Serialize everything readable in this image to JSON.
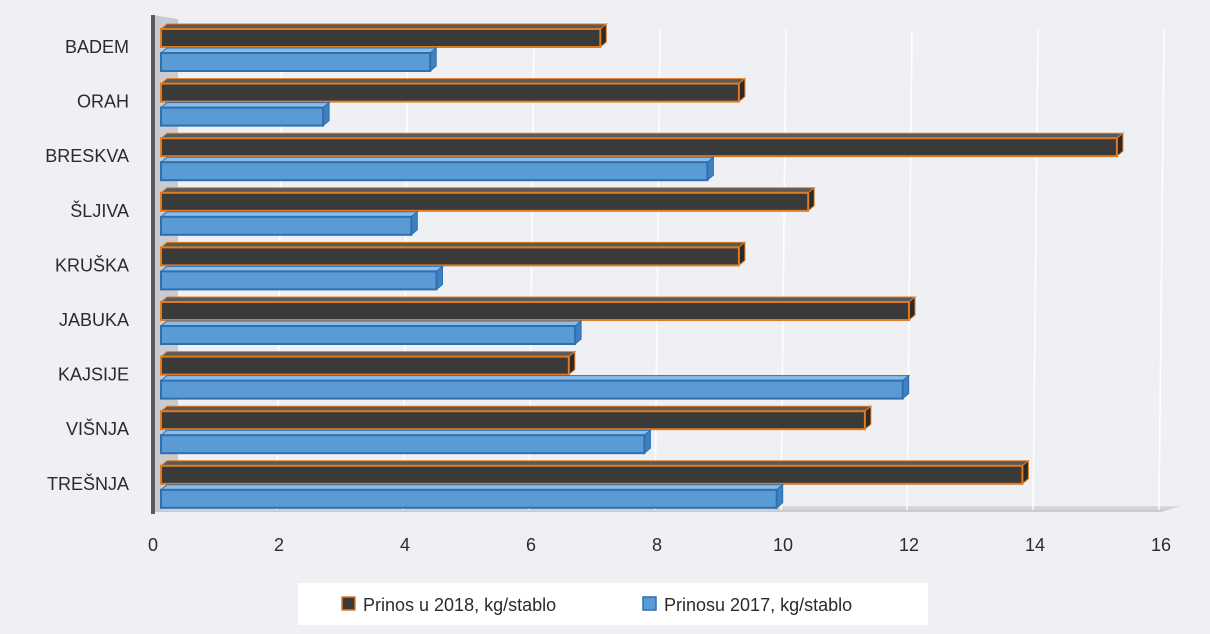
{
  "chart_data": {
    "type": "bar",
    "orientation": "horizontal",
    "style": "3d-bars",
    "categories": [
      "BADEM",
      "ORAH",
      "BRESKVA",
      "ŠLJIVA",
      "KRUŠKA",
      "JABUKA",
      "KAJSIJE",
      "VIŠNJA",
      "TREŠNJA"
    ],
    "series": [
      {
        "name": "Prinos u 2018, kg/stablo",
        "values": [
          7.1,
          9.3,
          15.3,
          10.4,
          9.3,
          12.0,
          6.6,
          11.3,
          13.8
        ],
        "color": "#3a3a3a",
        "edge_color": "#e07b22"
      },
      {
        "name": "Prinosu 2017, kg/stablo",
        "values": [
          4.4,
          2.7,
          8.8,
          4.1,
          4.5,
          6.7,
          11.9,
          7.8,
          9.9
        ],
        "color": "#5b9bd5",
        "edge_color": "#2e6fb0"
      }
    ],
    "xlim": [
      0,
      16
    ],
    "x_ticks": [
      "0",
      "2",
      "4",
      "6",
      "8",
      "10",
      "12",
      "14",
      "16"
    ],
    "title": "",
    "xlabel": "",
    "ylabel": "",
    "grid": "vertical",
    "legend": "bottom-center"
  }
}
